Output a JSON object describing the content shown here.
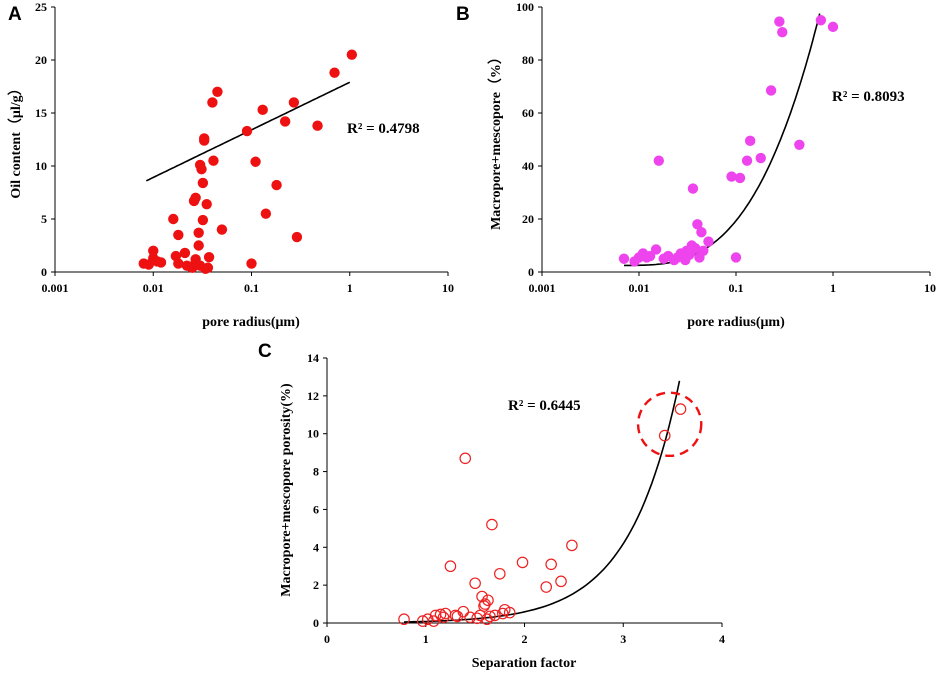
{
  "chart_data": [
    {
      "panel": "A",
      "type": "scatter",
      "xscale": "log",
      "xlim": [
        0.001,
        10
      ],
      "ylim": [
        0,
        25
      ],
      "xticks": [
        "0.001",
        "0.01",
        "0.1",
        "1",
        "10"
      ],
      "yticks": [
        "0",
        "5",
        "10",
        "15",
        "20",
        "25"
      ],
      "xlabel": "pore radius(μm)",
      "ylabel": "Oil content（μl/g）",
      "r2_label": "R² = 0.4798",
      "marker_color": "#ee1111",
      "points": [
        [
          0.008,
          0.8
        ],
        [
          0.009,
          0.7
        ],
        [
          0.01,
          1.3
        ],
        [
          0.01,
          2.0
        ],
        [
          0.011,
          1.0
        ],
        [
          0.012,
          0.9
        ],
        [
          0.016,
          5.0
        ],
        [
          0.017,
          1.5
        ],
        [
          0.018,
          3.5
        ],
        [
          0.018,
          0.8
        ],
        [
          0.021,
          1.8
        ],
        [
          0.022,
          0.6
        ],
        [
          0.024,
          0.5
        ],
        [
          0.025,
          0.4
        ],
        [
          0.026,
          6.7
        ],
        [
          0.027,
          1.2
        ],
        [
          0.027,
          7.0
        ],
        [
          0.028,
          0.7
        ],
        [
          0.029,
          2.5
        ],
        [
          0.029,
          3.7
        ],
        [
          0.03,
          10.1
        ],
        [
          0.03,
          0.6
        ],
        [
          0.031,
          9.7
        ],
        [
          0.032,
          4.9
        ],
        [
          0.032,
          8.4
        ],
        [
          0.033,
          12.4
        ],
        [
          0.033,
          12.6
        ],
        [
          0.034,
          0.3
        ],
        [
          0.035,
          6.4
        ],
        [
          0.036,
          0.4
        ],
        [
          0.037,
          1.4
        ],
        [
          0.04,
          16.0
        ],
        [
          0.041,
          10.5
        ],
        [
          0.045,
          17.0
        ],
        [
          0.05,
          4.0
        ],
        [
          0.09,
          13.3
        ],
        [
          0.1,
          0.8
        ],
        [
          0.11,
          10.4
        ],
        [
          0.13,
          15.3
        ],
        [
          0.14,
          5.5
        ],
        [
          0.18,
          8.2
        ],
        [
          0.22,
          14.2
        ],
        [
          0.27,
          16.0
        ],
        [
          0.29,
          3.3
        ],
        [
          0.47,
          13.8
        ],
        [
          0.7,
          18.8
        ],
        [
          1.05,
          20.5
        ]
      ],
      "trend": {
        "type": "log",
        "a": 4.49,
        "b": 17.9,
        "from": 0.0085,
        "to": 1.0
      }
    },
    {
      "panel": "B",
      "type": "scatter",
      "xscale": "log",
      "xlim": [
        0.001,
        10
      ],
      "ylim": [
        0,
        100
      ],
      "xticks": [
        "0.001",
        "0.01",
        "0.1",
        "1",
        "10"
      ],
      "yticks": [
        "0",
        "20",
        "40",
        "60",
        "80",
        "100"
      ],
      "xlabel": "pore radius(μm)",
      "ylabel": "Macropore+mescopore（%）",
      "r2_label": "R² = 0.8093",
      "marker_color": "#ee44ee",
      "points": [
        [
          0.007,
          5.0
        ],
        [
          0.009,
          4.0
        ],
        [
          0.01,
          5.5
        ],
        [
          0.011,
          7.0
        ],
        [
          0.012,
          5.5
        ],
        [
          0.013,
          6.0
        ],
        [
          0.015,
          8.5
        ],
        [
          0.016,
          42.0
        ],
        [
          0.018,
          5.0
        ],
        [
          0.02,
          6.0
        ],
        [
          0.023,
          4.5
        ],
        [
          0.025,
          5.5
        ],
        [
          0.027,
          7.0
        ],
        [
          0.028,
          6.0
        ],
        [
          0.03,
          4.5
        ],
        [
          0.031,
          8.0
        ],
        [
          0.033,
          6.5
        ],
        [
          0.034,
          7.5
        ],
        [
          0.035,
          10.0
        ],
        [
          0.036,
          31.5
        ],
        [
          0.038,
          9.0
        ],
        [
          0.04,
          18.0
        ],
        [
          0.042,
          5.5
        ],
        [
          0.044,
          15.0
        ],
        [
          0.046,
          8.0
        ],
        [
          0.052,
          11.5
        ],
        [
          0.09,
          36.0
        ],
        [
          0.1,
          5.5
        ],
        [
          0.11,
          35.5
        ],
        [
          0.13,
          42.0
        ],
        [
          0.14,
          49.5
        ],
        [
          0.18,
          43.0
        ],
        [
          0.23,
          68.5
        ],
        [
          0.28,
          94.5
        ],
        [
          0.3,
          90.5
        ],
        [
          0.45,
          48.0
        ],
        [
          0.75,
          95.0
        ],
        [
          1.0,
          92.5
        ]
      ],
      "trend": {
        "type": "cubic-in-log",
        "from": 0.007,
        "to": 0.73,
        "start_y": 2.5,
        "end_y": 97.5
      }
    },
    {
      "panel": "C",
      "type": "scatter",
      "xscale": "linear",
      "xlim": [
        0,
        4
      ],
      "ylim": [
        0,
        14
      ],
      "xticks": [
        "0",
        "1",
        "2",
        "3",
        "4"
      ],
      "yticks": [
        "0",
        "2",
        "4",
        "6",
        "8",
        "10",
        "12",
        "14"
      ],
      "xlabel": "Separation factor",
      "ylabel": "Macropore+mescopore porosity(%)",
      "r2_label": "R² = 0.6445",
      "marker_color": "#ee2222",
      "highlight": {
        "shape": "dashed-circle",
        "center": [
          3.47,
          10.5
        ],
        "radius_x": 0.32
      },
      "points": [
        [
          0.78,
          0.2
        ],
        [
          0.97,
          0.1
        ],
        [
          1.02,
          0.2
        ],
        [
          1.08,
          0.1
        ],
        [
          1.1,
          0.4
        ],
        [
          1.15,
          0.45
        ],
        [
          1.18,
          0.3
        ],
        [
          1.2,
          0.5
        ],
        [
          1.25,
          3.0
        ],
        [
          1.3,
          0.4
        ],
        [
          1.32,
          0.35
        ],
        [
          1.38,
          0.6
        ],
        [
          1.4,
          8.7
        ],
        [
          1.45,
          0.3
        ],
        [
          1.5,
          2.1
        ],
        [
          1.52,
          0.25
        ],
        [
          1.55,
          0.4
        ],
        [
          1.57,
          1.4
        ],
        [
          1.59,
          0.9
        ],
        [
          1.6,
          1.0
        ],
        [
          1.62,
          0.2
        ],
        [
          1.63,
          1.2
        ],
        [
          1.65,
          0.35
        ],
        [
          1.67,
          5.2
        ],
        [
          1.7,
          0.4
        ],
        [
          1.75,
          2.6
        ],
        [
          1.78,
          0.5
        ],
        [
          1.8,
          0.7
        ],
        [
          1.85,
          0.55
        ],
        [
          1.98,
          3.2
        ],
        [
          2.22,
          1.9
        ],
        [
          2.27,
          3.1
        ],
        [
          2.37,
          2.2
        ],
        [
          2.48,
          4.1
        ],
        [
          3.42,
          9.9
        ],
        [
          3.58,
          11.3
        ]
      ],
      "trend": {
        "type": "exp",
        "a": 0.0117,
        "b": 1.96,
        "from": 0.78,
        "to": 3.57
      }
    }
  ]
}
